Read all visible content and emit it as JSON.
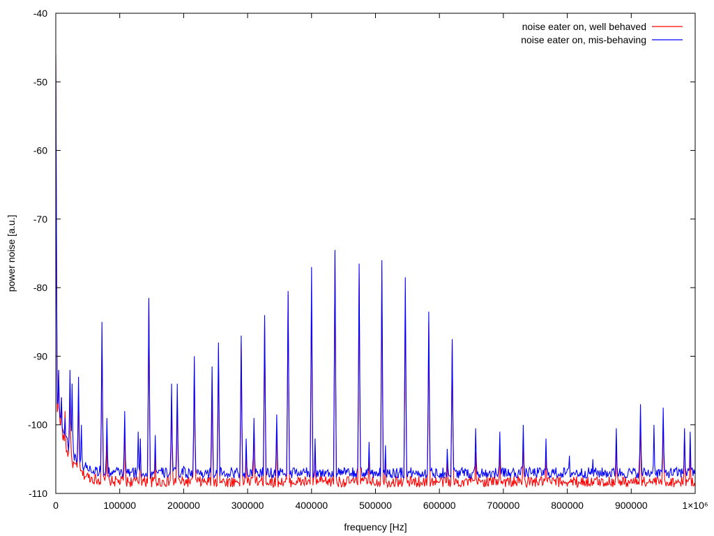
{
  "chart_data": {
    "type": "line",
    "title": "",
    "xlabel": "frequency [Hz]",
    "ylabel": "power noise [a.u.]",
    "xlim": [
      0,
      1000000
    ],
    "ylim": [
      -110,
      -40
    ],
    "xticks": [
      0,
      100000,
      200000,
      300000,
      400000,
      500000,
      600000,
      700000,
      800000,
      900000,
      1000000
    ],
    "xtick_labels": [
      "0",
      "100000",
      "200000",
      "300000",
      "400000",
      "500000",
      "600000",
      "700000",
      "800000",
      "900000",
      "1×10⁶"
    ],
    "yticks": [
      -110,
      -100,
      -90,
      -80,
      -70,
      -60,
      -50,
      -40
    ],
    "ytick_labels": [
      "-110",
      "-100",
      "-90",
      "-80",
      "-70",
      "-60",
      "-50",
      "-40"
    ],
    "grid": false,
    "legend_position": "top-right",
    "series": [
      {
        "name": "noise eater on, well behaved",
        "color": "#ff0000",
        "baseline": -108.3,
        "peaks": [
          [
            0,
            -46
          ],
          [
            4000,
            -92
          ],
          [
            9000,
            -96
          ],
          [
            14000,
            -98
          ],
          [
            22000,
            -94
          ],
          [
            36000,
            -95
          ],
          [
            72000,
            -87
          ],
          [
            80000,
            -102
          ],
          [
            108000,
            -100
          ],
          [
            132000,
            -102
          ],
          [
            145000,
            -82
          ],
          [
            155000,
            -104
          ],
          [
            181000,
            -96
          ],
          [
            190000,
            -96
          ],
          [
            217000,
            -91
          ],
          [
            244000,
            -94
          ],
          [
            254000,
            -89
          ],
          [
            290000,
            -88
          ],
          [
            298000,
            -103
          ],
          [
            310000,
            -100
          ],
          [
            327000,
            -85
          ],
          [
            346000,
            -100
          ],
          [
            363000,
            -81
          ],
          [
            400000,
            -80
          ],
          [
            405000,
            -103
          ],
          [
            437000,
            -75
          ],
          [
            474000,
            -78
          ],
          [
            490000,
            -104
          ],
          [
            510000,
            -79
          ],
          [
            515000,
            -104
          ],
          [
            547000,
            -81
          ],
          [
            583000,
            -85
          ],
          [
            612000,
            -105
          ],
          [
            620000,
            -88
          ],
          [
            657000,
            -104
          ],
          [
            694000,
            -103
          ],
          [
            731000,
            -102
          ],
          [
            767000,
            -104
          ],
          [
            877000,
            -102
          ],
          [
            914000,
            -99
          ],
          [
            950000,
            -99
          ],
          [
            983000,
            -101
          ],
          [
            992000,
            -104
          ]
        ]
      },
      {
        "name": "noise eater on, mis-behaving",
        "color": "#0000ff",
        "baseline": -107.0,
        "peaks": [
          [
            0,
            -46
          ],
          [
            4000,
            -92
          ],
          [
            9000,
            -96
          ],
          [
            14000,
            -99
          ],
          [
            22000,
            -92
          ],
          [
            26000,
            -94
          ],
          [
            36000,
            -93
          ],
          [
            40000,
            -100
          ],
          [
            72000,
            -85
          ],
          [
            80000,
            -99
          ],
          [
            108000,
            -98
          ],
          [
            129000,
            -101
          ],
          [
            132000,
            -102
          ],
          [
            145000,
            -81.5
          ],
          [
            155000,
            -101.5
          ],
          [
            181000,
            -94
          ],
          [
            190000,
            -94
          ],
          [
            200000,
            -106
          ],
          [
            217000,
            -90
          ],
          [
            244000,
            -91.5
          ],
          [
            254000,
            -88
          ],
          [
            290000,
            -87
          ],
          [
            298000,
            -102
          ],
          [
            310000,
            -99
          ],
          [
            327000,
            -84
          ],
          [
            346000,
            -98.5
          ],
          [
            363000,
            -80.5
          ],
          [
            400000,
            -77
          ],
          [
            405000,
            -102
          ],
          [
            437000,
            -74.5
          ],
          [
            474000,
            -76.5
          ],
          [
            490000,
            -102.5
          ],
          [
            510000,
            -76
          ],
          [
            515000,
            -103
          ],
          [
            547000,
            -78.5
          ],
          [
            583000,
            -83.5
          ],
          [
            612000,
            -103.5
          ],
          [
            620000,
            -87.5
          ],
          [
            657000,
            -100.5
          ],
          [
            694000,
            -101
          ],
          [
            731000,
            -100
          ],
          [
            767000,
            -102
          ],
          [
            803000,
            -104.5
          ],
          [
            840000,
            -105
          ],
          [
            877000,
            -100.5
          ],
          [
            914000,
            -97
          ],
          [
            935000,
            -100
          ],
          [
            950000,
            -97.5
          ],
          [
            983000,
            -100.5
          ],
          [
            992000,
            -101
          ]
        ]
      }
    ]
  }
}
